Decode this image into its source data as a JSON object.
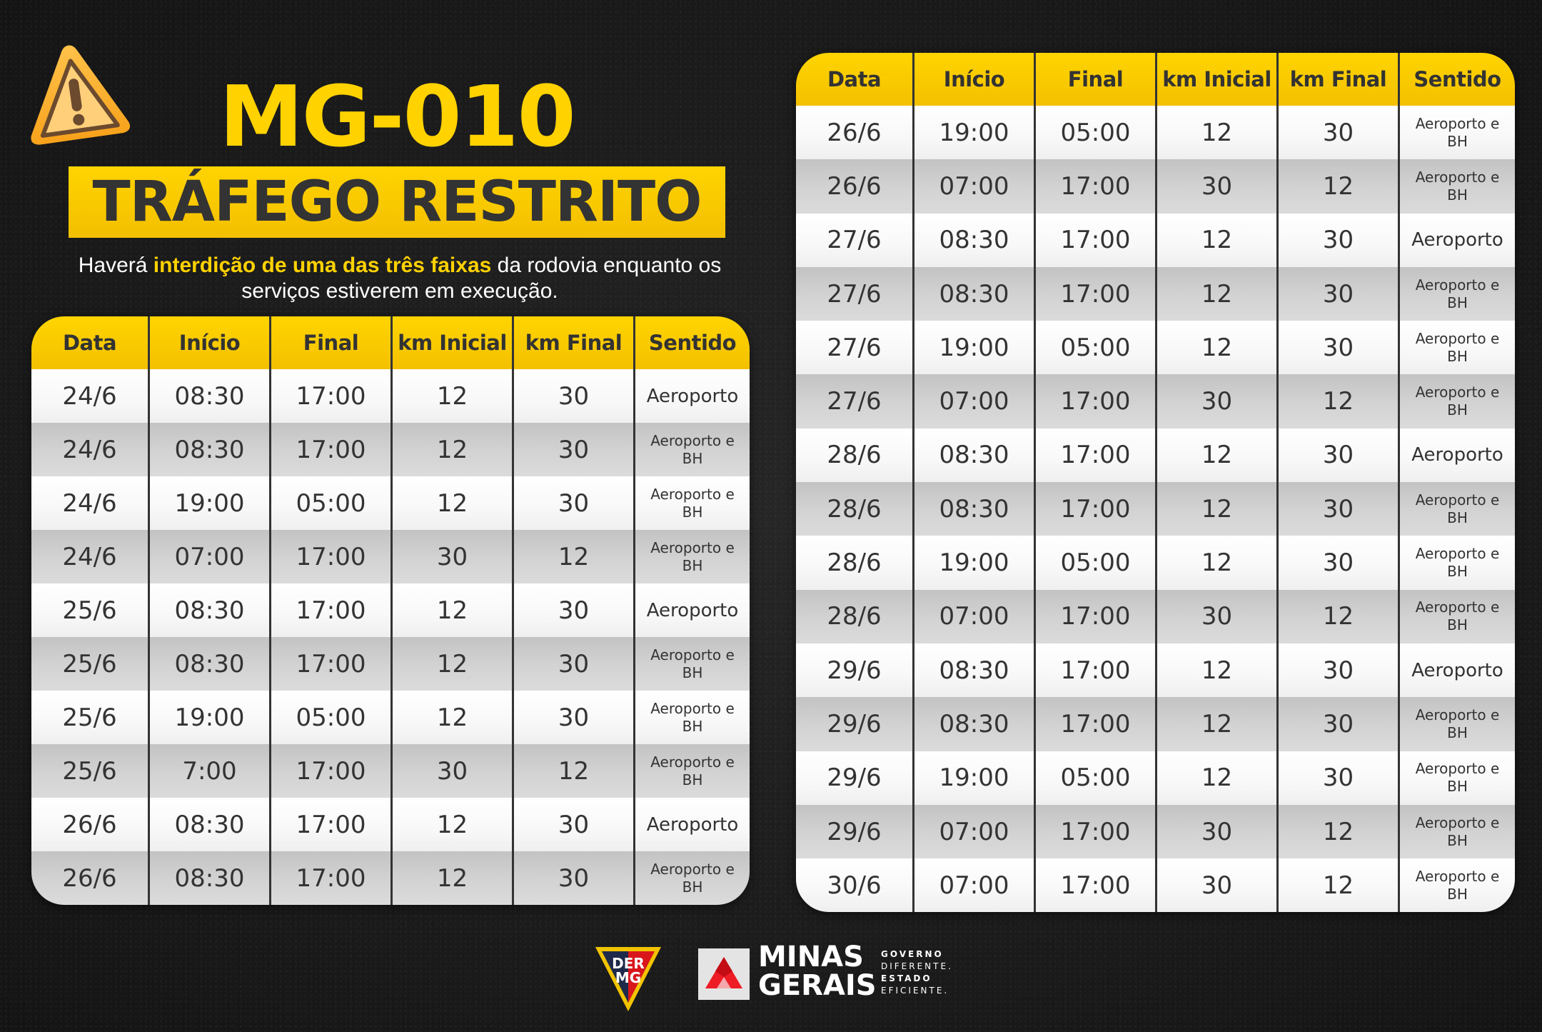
{
  "header": {
    "icon": "warning-icon",
    "title": "MG-010",
    "banner": "TRÁFEGO RESTRITO",
    "subtitle": {
      "before": "Haverá ",
      "highlight": "interdição de uma das três faixas",
      "after": " da rodovia enquanto os serviços estiverem em execução."
    }
  },
  "colors": {
    "accent_yellow": "#ffd200",
    "text_dark": "#333333",
    "background": "#1c1c1c"
  },
  "columns": [
    "Data",
    "Início",
    "Final",
    "km Inicial",
    "km Final",
    "Sentido"
  ],
  "left_table": {
    "rows": [
      [
        "24/6",
        "08:30",
        "17:00",
        "12",
        "30",
        "Aeroporto"
      ],
      [
        "24/6",
        "08:30",
        "17:00",
        "12",
        "30",
        "Aeroporto e BH"
      ],
      [
        "24/6",
        "19:00",
        "05:00",
        "12",
        "30",
        "Aeroporto e BH"
      ],
      [
        "24/6",
        "07:00",
        "17:00",
        "30",
        "12",
        "Aeroporto e BH"
      ],
      [
        "25/6",
        "08:30",
        "17:00",
        "12",
        "30",
        "Aeroporto"
      ],
      [
        "25/6",
        "08:30",
        "17:00",
        "12",
        "30",
        "Aeroporto e BH"
      ],
      [
        "25/6",
        "19:00",
        "05:00",
        "12",
        "30",
        "Aeroporto e BH"
      ],
      [
        "25/6",
        "7:00",
        "17:00",
        "30",
        "12",
        "Aeroporto e BH"
      ],
      [
        "26/6",
        "08:30",
        "17:00",
        "12",
        "30",
        "Aeroporto"
      ],
      [
        "26/6",
        "08:30",
        "17:00",
        "12",
        "30",
        "Aeroporto e BH"
      ]
    ]
  },
  "right_table": {
    "rows": [
      [
        "26/6",
        "19:00",
        "05:00",
        "12",
        "30",
        "Aeroporto e BH"
      ],
      [
        "26/6",
        "07:00",
        "17:00",
        "30",
        "12",
        "Aeroporto e BH"
      ],
      [
        "27/6",
        "08:30",
        "17:00",
        "12",
        "30",
        "Aeroporto"
      ],
      [
        "27/6",
        "08:30",
        "17:00",
        "12",
        "30",
        "Aeroporto e BH"
      ],
      [
        "27/6",
        "19:00",
        "05:00",
        "12",
        "30",
        "Aeroporto e BH"
      ],
      [
        "27/6",
        "07:00",
        "17:00",
        "30",
        "12",
        "Aeroporto e BH"
      ],
      [
        "28/6",
        "08:30",
        "17:00",
        "12",
        "30",
        "Aeroporto"
      ],
      [
        "28/6",
        "08:30",
        "17:00",
        "12",
        "30",
        "Aeroporto e BH"
      ],
      [
        "28/6",
        "19:00",
        "05:00",
        "12",
        "30",
        "Aeroporto e BH"
      ],
      [
        "28/6",
        "07:00",
        "17:00",
        "30",
        "12",
        "Aeroporto e BH"
      ],
      [
        "29/6",
        "08:30",
        "17:00",
        "12",
        "30",
        "Aeroporto"
      ],
      [
        "29/6",
        "08:30",
        "17:00",
        "12",
        "30",
        "Aeroporto e BH"
      ],
      [
        "29/6",
        "19:00",
        "05:00",
        "12",
        "30",
        "Aeroporto e BH"
      ],
      [
        "29/6",
        "07:00",
        "17:00",
        "30",
        "12",
        "Aeroporto e BH"
      ],
      [
        "30/6",
        "07:00",
        "17:00",
        "30",
        "12",
        "Aeroporto e BH"
      ]
    ]
  },
  "footer": {
    "der_logo": {
      "line1": "DER",
      "line2": "MG"
    },
    "mg_logo": {
      "name_line1": "MINAS",
      "name_line2": "GERAIS",
      "tagline": [
        "GOVERNO",
        "DIFERENTE.",
        "ESTADO",
        "EFICIENTE."
      ]
    }
  }
}
